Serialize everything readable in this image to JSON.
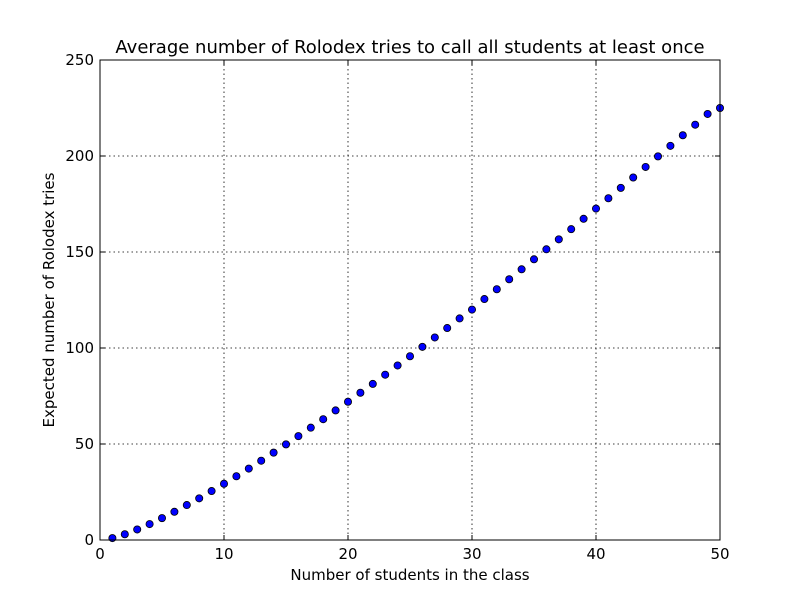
{
  "chart_data": {
    "type": "scatter",
    "title": "Average number of Rolodex tries to call all students at least once",
    "xlabel": "Number of students in the class",
    "ylabel": "Expected number of Rolodex tries",
    "xlim": [
      0,
      50
    ],
    "ylim": [
      0,
      250
    ],
    "xticks": [
      0,
      10,
      20,
      30,
      40,
      50
    ],
    "yticks": [
      0,
      50,
      100,
      150,
      200,
      250
    ],
    "grid": true,
    "marker_color": "#0000ff",
    "marker_edge_color": "#000000",
    "x": [
      1,
      2,
      3,
      4,
      5,
      6,
      7,
      8,
      9,
      10,
      11,
      12,
      13,
      14,
      15,
      16,
      17,
      18,
      19,
      20,
      21,
      22,
      23,
      24,
      25,
      26,
      27,
      28,
      29,
      30,
      31,
      32,
      33,
      34,
      35,
      36,
      37,
      38,
      39,
      40,
      41,
      42,
      43,
      44,
      45,
      46,
      47,
      48,
      49,
      50
    ],
    "y": [
      1.0,
      3.0,
      5.5,
      8.3,
      11.4,
      14.7,
      18.2,
      21.7,
      25.5,
      29.3,
      33.2,
      37.2,
      41.3,
      45.5,
      49.8,
      54.1,
      58.5,
      62.9,
      67.5,
      72.0,
      76.7,
      81.3,
      86.1,
      90.9,
      95.7,
      100.6,
      105.5,
      110.4,
      115.4,
      120.0,
      125.5,
      130.6,
      135.8,
      141.0,
      146.2,
      151.4,
      156.6,
      161.9,
      167.3,
      172.6,
      178.0,
      183.4,
      188.8,
      194.3,
      199.8,
      205.3,
      210.8,
      216.3,
      221.9,
      225.0
    ]
  }
}
